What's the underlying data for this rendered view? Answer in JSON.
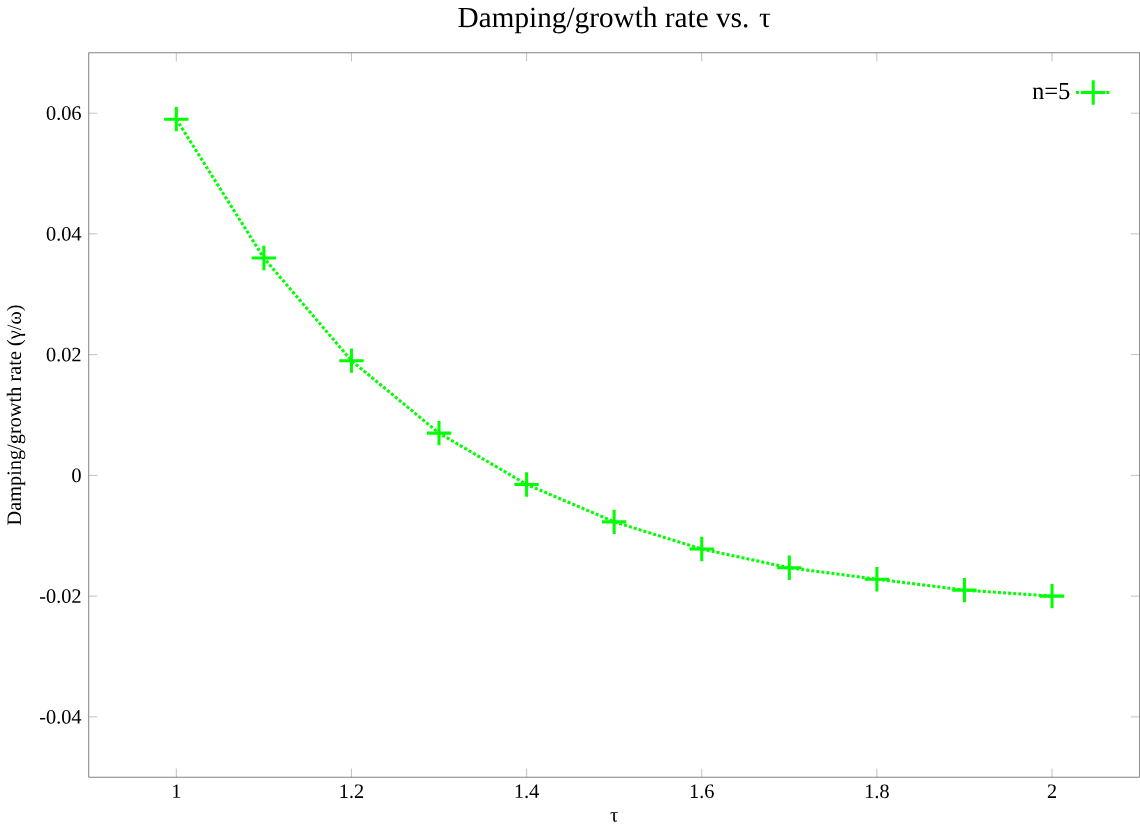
{
  "chart_data": {
    "type": "line",
    "title": "Damping/growth rate vs. τ",
    "xlabel": "τ",
    "ylabel": "Damping/growth rate (γ/ω)",
    "x": [
      1,
      1.1,
      1.2,
      1.3,
      1.4,
      1.5,
      1.6,
      1.7,
      1.8,
      1.9,
      2.0
    ],
    "series": [
      {
        "name": "n=5",
        "color": "#00ff00",
        "values": [
          0.059,
          0.036,
          0.019,
          0.007,
          -0.0015,
          -0.0077,
          -0.0122,
          -0.0153,
          -0.0172,
          -0.019,
          -0.02
        ]
      }
    ],
    "xlim": [
      0.9,
      2.1
    ],
    "ylim": [
      -0.05,
      0.07
    ],
    "xticks": [
      1,
      1.2,
      1.4,
      1.6,
      1.8,
      2
    ],
    "yticks": [
      -0.04,
      -0.02,
      0,
      0.02,
      0.04,
      0.06
    ],
    "marker": "cross",
    "line_style": "dotted",
    "legend": "top right",
    "grid": false
  }
}
